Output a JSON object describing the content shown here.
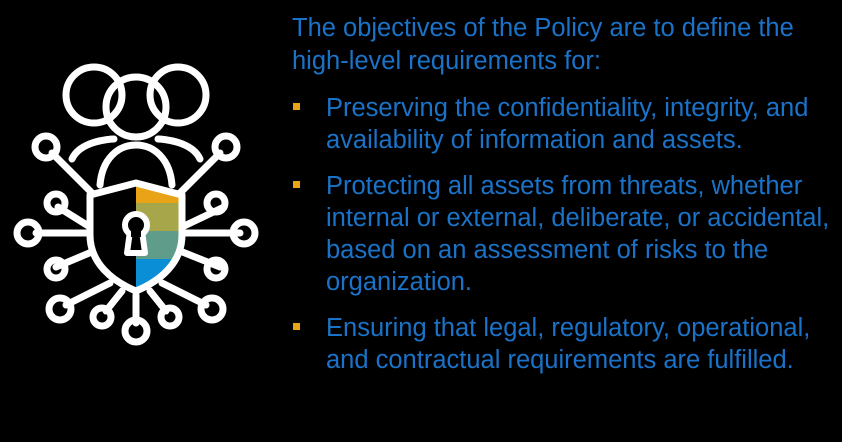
{
  "colors": {
    "background": "#000000",
    "text": "#1a73c8",
    "bullet": "#e8a317",
    "icon_stroke": "#ffffff",
    "shield_bands": [
      "#e8a317",
      "#a7a64a",
      "#5f9c8a",
      "#0a8fd6"
    ]
  },
  "icon": {
    "name": "people-network-shield-lock-icon"
  },
  "intro": "The objectives of the Policy are to define the high-level requirements for:",
  "bullets": [
    "Preserving the confidentiality, integrity, and availability of information and assets.",
    "Protecting all assets from threats, whether internal or external, deliberate, or accidental, based on an assessment of risks to the organization.",
    "Ensuring that legal, regulatory, operational, and contractual requirements are fulfilled."
  ]
}
